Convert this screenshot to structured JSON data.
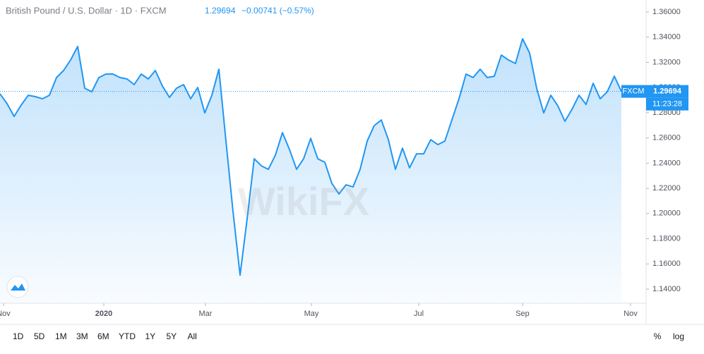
{
  "chart_data": {
    "type": "line",
    "title": "British Pound / U.S. Dollar · 1D · FXCM",
    "last_price": 1.29694,
    "last_price_label": "1.29694",
    "change": "−0.00741 (−0.57%)",
    "source": "FXCM",
    "countdown": "11:23:28",
    "watermark": "WikiFX",
    "color": "#2196f3",
    "series": [
      {
        "name": "FXCM",
        "color": "#2196f3",
        "values": [
          1.295,
          1.2872,
          1.2771,
          1.2861,
          1.2939,
          1.2928,
          1.2911,
          1.2939,
          1.3079,
          1.3135,
          1.3219,
          1.3326,
          1.2995,
          1.2967,
          1.3079,
          1.3107,
          1.3107,
          1.3079,
          1.3068,
          1.3023,
          1.3107,
          1.3068,
          1.3135,
          1.3012,
          1.2922,
          1.2995,
          1.3023,
          1.2911,
          1.3001,
          1.2799,
          1.2939,
          1.3146,
          1.2575,
          1.2015,
          1.151,
          1.1959,
          1.2435,
          1.2379,
          1.2351,
          1.2463,
          1.2642,
          1.2508,
          1.2351,
          1.2435,
          1.2597,
          1.2435,
          1.2407,
          1.2239,
          1.2155,
          1.2228,
          1.2211,
          1.2351,
          1.2575,
          1.2698,
          1.2743,
          1.2586,
          1.2351,
          1.2519,
          1.2362,
          1.2474,
          1.2474,
          1.2586,
          1.2547,
          1.2575,
          1.2743,
          1.2911,
          1.3107,
          1.3079,
          1.3146,
          1.3079,
          1.309,
          1.3258,
          1.3219,
          1.3191,
          1.3387,
          1.3275,
          1.2995,
          1.2799,
          1.2939,
          1.2855,
          1.2732,
          1.2827,
          1.2939,
          1.2866,
          1.3034,
          1.2911,
          1.2967,
          1.309,
          1.2969
        ]
      }
    ],
    "xlim": [
      0,
      91.5
    ],
    "xticks": [
      {
        "value": 0.5,
        "label": "Nov"
      },
      {
        "value": 14.7,
        "label": "2020"
      },
      {
        "value": 29.1,
        "label": "Mar"
      },
      {
        "value": 44.1,
        "label": "May"
      },
      {
        "value": 59.3,
        "label": "Jul"
      },
      {
        "value": 74.0,
        "label": "Sep"
      },
      {
        "value": 89.3,
        "label": "Nov"
      }
    ],
    "ylim": [
      1.1288,
      1.3695
    ],
    "yticks": [
      {
        "value": 1.14,
        "label": "1.14000"
      },
      {
        "value": 1.16,
        "label": "1.16000"
      },
      {
        "value": 1.18,
        "label": "1.18000"
      },
      {
        "value": 1.2,
        "label": "1.20000"
      },
      {
        "value": 1.22,
        "label": "1.22000"
      },
      {
        "value": 1.24,
        "label": "1.24000"
      },
      {
        "value": 1.26,
        "label": "1.26000"
      },
      {
        "value": 1.28,
        "label": "1.28000"
      },
      {
        "value": 1.3,
        "label": "1.30000"
      },
      {
        "value": 1.32,
        "label": "1.32000"
      },
      {
        "value": 1.34,
        "label": "1.34000"
      },
      {
        "value": 1.36,
        "label": "1.36000"
      }
    ],
    "ranges": [
      "1D",
      "5D",
      "1M",
      "3M",
      "6M",
      "YTD",
      "1Y",
      "5Y",
      "All"
    ],
    "scale_options": [
      "%",
      "log"
    ]
  }
}
